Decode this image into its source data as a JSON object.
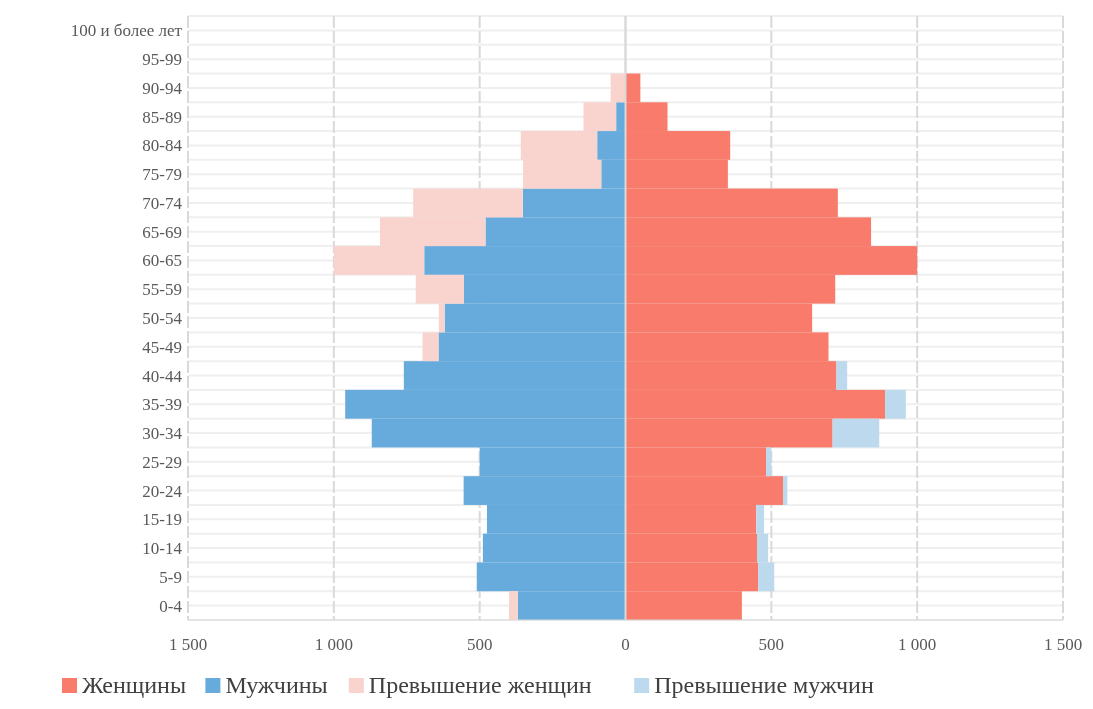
{
  "chart_data": {
    "type": "bar",
    "orientation": "horizontal",
    "stacked": true,
    "categories": [
      "100 и более лет",
      "95-99",
      "90-94",
      "85-89",
      "80-84",
      "75-79",
      "70-74",
      "65-69",
      "60-65",
      "55-59",
      "50-54",
      "45-49",
      "40-44",
      "35-39",
      "30-34",
      "25-29",
      "20-24",
      "15-19",
      "10-14",
      "5-9",
      "0-4"
    ],
    "series": [
      {
        "name": "Женщины",
        "color": "#f97b6b",
        "values": [
          0,
          0,
          51,
          144,
          359,
          351,
          728,
          842,
          1000,
          719,
          640,
          696,
          723,
          890,
          710,
          482,
          540,
          448,
          451,
          455,
          399
        ]
      },
      {
        "name": "Мужчины",
        "color": "#67abdd",
        "values": [
          0,
          0,
          0,
          -32,
          -97,
          -83,
          -352,
          -480,
          -690,
          -554,
          -620,
          -641,
          -760,
          -961,
          -870,
          -500,
          -555,
          -475,
          -489,
          -510,
          -369
        ]
      },
      {
        "name": "Превышение женщин",
        "color": "#f9d3cd",
        "values": [
          0,
          0,
          -51,
          -112,
          -262,
          -268,
          -376,
          -362,
          -310,
          -165,
          -20,
          -55,
          0,
          0,
          0,
          0,
          0,
          0,
          0,
          0,
          -30
        ]
      },
      {
        "name": "Превышение мужчин",
        "color": "#bcd9ee",
        "values": [
          0,
          0,
          0,
          0,
          0,
          0,
          0,
          0,
          0,
          0,
          0,
          0,
          37,
          71,
          160,
          18,
          15,
          27,
          38,
          55,
          0
        ]
      }
    ],
    "xlim": [
      -1500,
      1500
    ],
    "xticks": [
      {
        "value": -1500,
        "label": "1 500"
      },
      {
        "value": -1000,
        "label": "1 000"
      },
      {
        "value": -500,
        "label": "500"
      },
      0,
      500,
      {
        "value": 1000,
        "label": "1 000"
      },
      {
        "value": 1500,
        "label": "1 500"
      }
    ],
    "grid": true,
    "legend": "bottom"
  }
}
